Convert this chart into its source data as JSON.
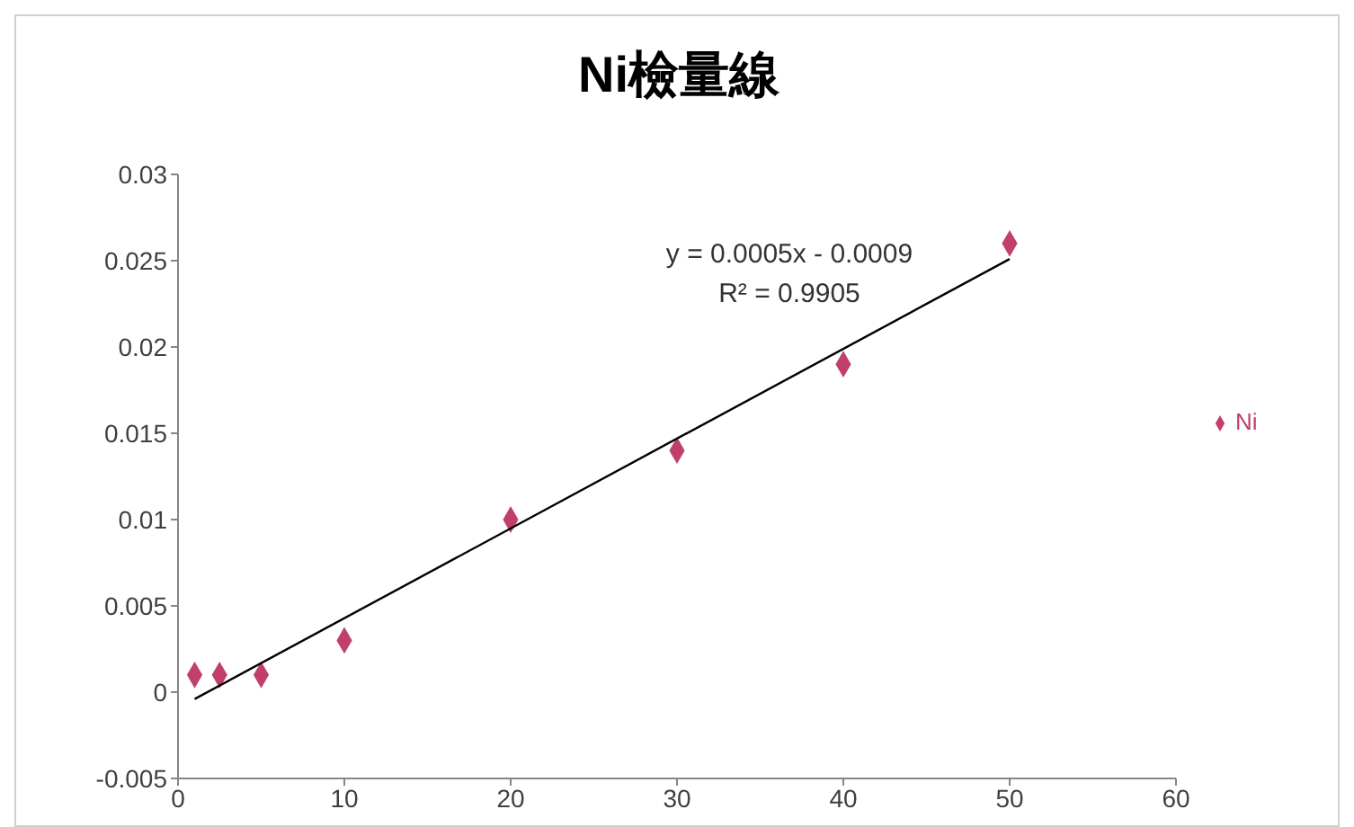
{
  "chart_data": {
    "type": "scatter",
    "title": "Ni檢量線",
    "series": [
      {
        "name": "Ni",
        "color": "#c0406a",
        "marker": "diamond",
        "x": [
          1,
          2.5,
          5,
          10,
          20,
          30,
          40,
          50
        ],
        "values": [
          0.001,
          0.001,
          0.001,
          0.003,
          0.01,
          0.014,
          0.019,
          0.026
        ]
      },
      {
        "type": "line",
        "color": "#000000",
        "marker": "none",
        "line_style": "solid",
        "x": [
          1,
          50
        ],
        "values": [
          -0.0004,
          0.0251
        ]
      }
    ],
    "xlim": [
      0,
      60
    ],
    "xticks": [
      0,
      10,
      20,
      30,
      40,
      50,
      60
    ],
    "ylim": [
      -0.005,
      0.03
    ],
    "yticks": [
      -0.005,
      0,
      0.005,
      0.01,
      0.015,
      0.02,
      0.025,
      0.03
    ],
    "legend": "right",
    "annotations": [
      "y = 0.0005x - 0.0009",
      "R² = 0.9905"
    ]
  }
}
